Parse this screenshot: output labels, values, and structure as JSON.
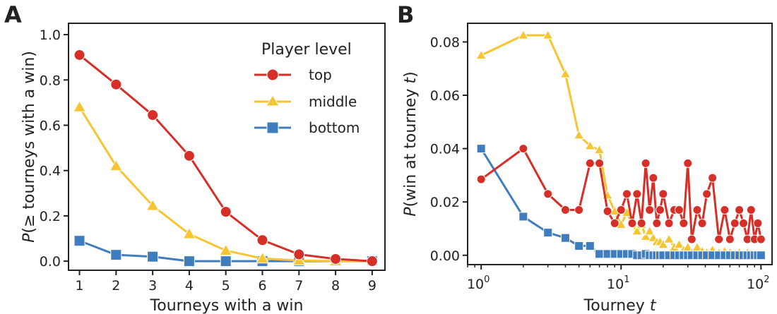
{
  "figure": {
    "panels": [
      "A",
      "B"
    ],
    "legend": {
      "title": "Player level",
      "entries": [
        "top",
        "middle",
        "bottom"
      ]
    }
  },
  "colors": {
    "top": "#d62f27",
    "middle": "#f7c531",
    "bottom": "#3f7dbf"
  },
  "chart_data": [
    {
      "panel": "A",
      "type": "line",
      "title": "",
      "xlabel": "Tourneys with a win",
      "ylabel_prefix": "P",
      "ylabel_rest": "(≥ tourneys with a win)",
      "xlim": [
        0.7,
        9.35
      ],
      "ylim": [
        -0.04,
        1.05
      ],
      "xticks": [
        1,
        2,
        3,
        4,
        5,
        6,
        7,
        8,
        9
      ],
      "yticks": [
        0.0,
        0.2,
        0.4,
        0.6,
        0.8,
        1.0
      ],
      "ytick_labels": [
        "0.0",
        "0.2",
        "0.4",
        "0.6",
        "0.8",
        "1.0"
      ],
      "grid": false,
      "legend_position": "top-right",
      "series": [
        {
          "name": "top",
          "marker": "circle",
          "x": [
            1,
            2,
            3,
            4,
            5,
            6,
            7,
            8,
            9
          ],
          "y": [
            0.91,
            0.78,
            0.645,
            0.465,
            0.218,
            0.093,
            0.03,
            0.01,
            0.0
          ]
        },
        {
          "name": "middle",
          "marker": "triangle",
          "x": [
            1,
            2,
            3,
            4,
            5,
            6,
            7,
            8,
            9
          ],
          "y": [
            0.68,
            0.42,
            0.245,
            0.12,
            0.047,
            0.012,
            0.003,
            0.0,
            0.0
          ]
        },
        {
          "name": "bottom",
          "marker": "square",
          "x": [
            1,
            2,
            3,
            4,
            5,
            6,
            7,
            8,
            9
          ],
          "y": [
            0.09,
            0.028,
            0.02,
            0.0,
            0.0,
            0.0,
            0.0,
            0.0,
            0.0
          ]
        }
      ]
    },
    {
      "panel": "B",
      "type": "line",
      "title": "",
      "xlabel_prefix": "Tourney ",
      "xlabel_var": "t",
      "ylabel_prefix": "P",
      "ylabel_mid": "(win at tourney ",
      "ylabel_var": "t",
      "ylabel_end": ")",
      "xscale": "log",
      "xlim": [
        0.8,
        120
      ],
      "ylim": [
        -0.0035,
        0.087
      ],
      "xticks": [
        1,
        10,
        100
      ],
      "xtick_labels": [
        {
          "base": "10",
          "exp": "0"
        },
        {
          "base": "10",
          "exp": "1"
        },
        {
          "base": "10",
          "exp": "2"
        }
      ],
      "yticks": [
        0.0,
        0.02,
        0.04,
        0.06,
        0.08
      ],
      "ytick_labels": [
        "0.00",
        "0.02",
        "0.04",
        "0.06",
        "0.08"
      ],
      "grid": false,
      "series": [
        {
          "name": "top",
          "marker": "circle",
          "x": [
            1,
            2,
            3,
            4,
            5,
            6,
            7,
            8,
            9,
            10,
            11,
            12,
            13,
            14,
            15,
            16,
            17,
            18,
            19,
            20,
            22,
            24,
            26,
            28,
            30,
            32,
            35,
            38,
            41,
            45,
            50,
            55,
            60,
            65,
            70,
            75,
            80,
            85,
            90,
            95,
            100
          ],
          "y": [
            0.0285,
            0.04,
            0.023,
            0.017,
            0.017,
            0.0345,
            0.0345,
            0.0165,
            0.012,
            0.017,
            0.023,
            0.012,
            0.023,
            0.012,
            0.0345,
            0.017,
            0.029,
            0.012,
            0.017,
            0.023,
            0.012,
            0.017,
            0.017,
            0.012,
            0.0345,
            0.006,
            0.017,
            0.012,
            0.023,
            0.029,
            0.006,
            0.017,
            0.006,
            0.012,
            0.017,
            0.012,
            0.006,
            0.017,
            0.006,
            0.012,
            0.006
          ]
        },
        {
          "name": "middle",
          "marker": "triangle",
          "x": [
            1,
            2,
            3,
            4,
            5,
            6,
            7,
            8,
            9,
            10,
            11,
            12,
            13,
            14,
            15,
            16,
            17,
            18,
            19,
            20,
            22,
            24,
            26,
            28,
            30,
            32,
            35,
            38,
            41,
            45,
            50,
            55,
            60,
            65,
            70,
            75,
            80,
            85,
            90,
            95,
            100
          ],
          "y": [
            0.075,
            0.0825,
            0.0825,
            0.068,
            0.045,
            0.041,
            0.0395,
            0.0225,
            0.0165,
            0.0115,
            0.016,
            0.012,
            0.009,
            0.0115,
            0.007,
            0.009,
            0.0065,
            0.005,
            0.005,
            0.004,
            0.006,
            0.003,
            0.004,
            0.002,
            0.003,
            0.001,
            0.003,
            0.0015,
            0.001,
            0.002,
            0.001,
            0.0015,
            0.001,
            0.0005,
            0.001,
            0.0005,
            0.001,
            0.0005,
            0.0005,
            0.0005,
            0.0005
          ]
        },
        {
          "name": "bottom",
          "marker": "square",
          "x": [
            1,
            2,
            3,
            4,
            5,
            6,
            7,
            8,
            9,
            10,
            11,
            12,
            13,
            14,
            15,
            16,
            17,
            18,
            19,
            20,
            22,
            24,
            26,
            28,
            30,
            32,
            35,
            38,
            41,
            45,
            50,
            55,
            60,
            65,
            70,
            75,
            80,
            85,
            90,
            95,
            100
          ],
          "y": [
            0.04,
            0.0145,
            0.0085,
            0.0065,
            0.0035,
            0.0035,
            0.0005,
            0.0005,
            0.0005,
            0.0005,
            0.0005,
            0.0005,
            0.0,
            0.0,
            0.0005,
            0.0,
            0.0,
            0.0,
            0.0,
            0.0,
            0.0,
            0.0,
            0.0,
            0.0,
            0.0,
            0.0,
            0.0,
            0.0,
            0.0,
            0.0,
            0.0,
            0.0,
            0.0,
            0.0,
            0.0,
            0.0,
            0.0,
            0.0,
            0.0,
            0.0,
            0.0
          ]
        }
      ]
    }
  ]
}
